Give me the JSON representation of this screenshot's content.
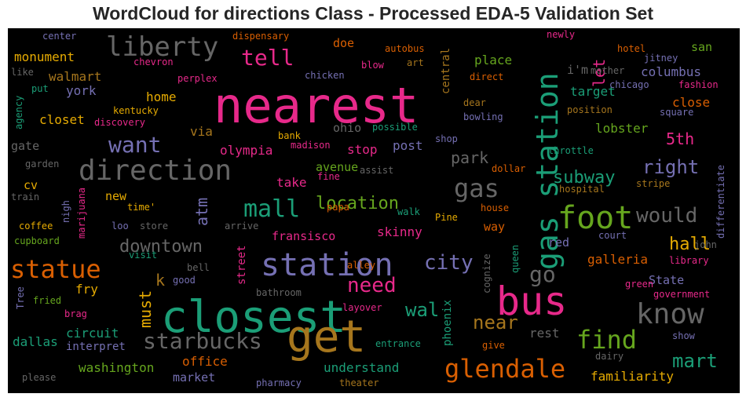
{
  "title": "WordCloud for directions Class - Processed EDA-5 Validation Set",
  "colors": {
    "green": "#1b9e77",
    "orange": "#d95f02",
    "purple": "#7570b3",
    "pink": "#e7298a",
    "lime": "#66a61e",
    "gold": "#e6ab02",
    "brown": "#a6761d",
    "gray": "#666666"
  },
  "chart_data": {
    "type": "wordcloud",
    "title": "WordCloud for directions Class - Processed EDA-5 Validation Set",
    "words": [
      {
        "text": "nearest",
        "size": 62,
        "color": "pink"
      },
      {
        "text": "closest",
        "size": 56,
        "color": "green"
      },
      {
        "text": "get",
        "size": 56,
        "color": "brown"
      },
      {
        "text": "bus",
        "size": 50,
        "color": "pink"
      },
      {
        "text": "station",
        "size": 40,
        "color": "purple"
      },
      {
        "text": "gas station",
        "size": 38,
        "color": "green"
      },
      {
        "text": "foot",
        "size": 40,
        "color": "lime"
      },
      {
        "text": "direction",
        "size": 36,
        "color": "gray"
      },
      {
        "text": "liberty",
        "size": 34,
        "color": "gray"
      },
      {
        "text": "glendale",
        "size": 32,
        "color": "orange"
      },
      {
        "text": "statue",
        "size": 32,
        "color": "orange"
      },
      {
        "text": "know",
        "size": 36,
        "color": "gray"
      },
      {
        "text": "find",
        "size": 32,
        "color": "lime"
      },
      {
        "text": "gas",
        "size": 32,
        "color": "gray"
      },
      {
        "text": "mall",
        "size": 30,
        "color": "green"
      },
      {
        "text": "starbucks",
        "size": 28,
        "color": "gray"
      },
      {
        "text": "want",
        "size": 28,
        "color": "purple"
      },
      {
        "text": "tell",
        "size": 28,
        "color": "pink"
      },
      {
        "text": "go",
        "size": 28,
        "color": "gray"
      },
      {
        "text": "need",
        "size": 26,
        "color": "pink"
      },
      {
        "text": "would",
        "size": 26,
        "color": "gray"
      },
      {
        "text": "city",
        "size": 26,
        "color": "purple"
      },
      {
        "text": "right",
        "size": 24,
        "color": "purple"
      },
      {
        "text": "mart",
        "size": 24,
        "color": "green"
      },
      {
        "text": "near",
        "size": 24,
        "color": "brown"
      },
      {
        "text": "wal",
        "size": 24,
        "color": "green"
      },
      {
        "text": "location",
        "size": 22,
        "color": "lime"
      },
      {
        "text": "downtown",
        "size": 22,
        "color": "gray"
      },
      {
        "text": "hall",
        "size": 22,
        "color": "gold"
      },
      {
        "text": "subway",
        "size": 22,
        "color": "green"
      },
      {
        "text": "park",
        "size": 20,
        "color": "gray"
      },
      {
        "text": "must",
        "size": 20,
        "color": "gold"
      },
      {
        "text": "5th",
        "size": 20,
        "color": "pink"
      },
      {
        "text": "atm",
        "size": 20,
        "color": "purple"
      },
      {
        "text": "let",
        "size": 20,
        "color": "pink"
      },
      {
        "text": "k",
        "size": 20,
        "color": "brown"
      },
      {
        "text": "skinny",
        "size": 16,
        "color": "pink"
      },
      {
        "text": "circuit",
        "size": 16,
        "color": "green"
      },
      {
        "text": "place",
        "size": 16,
        "color": "lime"
      },
      {
        "text": "columbus",
        "size": 16,
        "color": "purple"
      },
      {
        "text": "target",
        "size": 16,
        "color": "green"
      },
      {
        "text": "lobster",
        "size": 16,
        "color": "lime"
      },
      {
        "text": "galleria",
        "size": 16,
        "color": "orange"
      },
      {
        "text": "close",
        "size": 16,
        "color": "orange"
      },
      {
        "text": "olympia",
        "size": 16,
        "color": "pink"
      },
      {
        "text": "take",
        "size": 16,
        "color": "pink"
      },
      {
        "text": "stop",
        "size": 16,
        "color": "pink"
      },
      {
        "text": "post",
        "size": 16,
        "color": "purple"
      },
      {
        "text": "fry",
        "size": 16,
        "color": "gold"
      },
      {
        "text": "rest",
        "size": 16,
        "color": "gray"
      },
      {
        "text": "office",
        "size": 16,
        "color": "orange"
      },
      {
        "text": "understand",
        "size": 16,
        "color": "green"
      },
      {
        "text": "familiarity",
        "size": 16,
        "color": "gold"
      },
      {
        "text": "washington",
        "size": 16,
        "color": "lime"
      },
      {
        "text": "dallas",
        "size": 16,
        "color": "green"
      },
      {
        "text": "interpret",
        "size": 14,
        "color": "purple"
      },
      {
        "text": "market",
        "size": 15,
        "color": "purple"
      },
      {
        "text": "State",
        "size": 15,
        "color": "purple"
      },
      {
        "text": "fransisco",
        "size": 15,
        "color": "pink"
      },
      {
        "text": "avenue",
        "size": 15,
        "color": "lime"
      },
      {
        "text": "via",
        "size": 16,
        "color": "brown"
      },
      {
        "text": "home",
        "size": 16,
        "color": "gold"
      },
      {
        "text": "closet",
        "size": 16,
        "color": "gold"
      },
      {
        "text": "monument",
        "size": 16,
        "color": "gold"
      },
      {
        "text": "walmart",
        "size": 16,
        "color": "brown"
      },
      {
        "text": "york",
        "size": 16,
        "color": "purple"
      },
      {
        "text": "gate",
        "size": 15,
        "color": "gray"
      },
      {
        "text": "cv",
        "size": 15,
        "color": "gold"
      },
      {
        "text": "new",
        "size": 15,
        "color": "gold"
      },
      {
        "text": "way",
        "size": 15,
        "color": "orange"
      },
      {
        "text": "red",
        "size": 15,
        "color": "purple"
      },
      {
        "text": "ohio",
        "size": 15,
        "color": "gray"
      },
      {
        "text": "san",
        "size": 15,
        "color": "lime"
      },
      {
        "text": "doe",
        "size": 15,
        "color": "orange"
      },
      {
        "text": "i'm",
        "size": 15,
        "color": "gray"
      },
      {
        "text": "street",
        "size": 14,
        "color": "pink"
      },
      {
        "text": "central",
        "size": 14,
        "color": "brown"
      },
      {
        "text": "phoenix",
        "size": 14,
        "color": "green"
      },
      {
        "text": "center",
        "size": 12,
        "color": "purple"
      },
      {
        "text": "dispensary",
        "size": 12,
        "color": "orange"
      },
      {
        "text": "autobus",
        "size": 12,
        "color": "orange"
      },
      {
        "text": "newly",
        "size": 12,
        "color": "pink"
      },
      {
        "text": "jitney",
        "size": 12,
        "color": "purple"
      },
      {
        "text": "chevron",
        "size": 12,
        "color": "pink"
      },
      {
        "text": "blow",
        "size": 12,
        "color": "pink"
      },
      {
        "text": "art",
        "size": 12,
        "color": "brown"
      },
      {
        "text": "hotel",
        "size": 12,
        "color": "orange"
      },
      {
        "text": "like",
        "size": 12,
        "color": "gray"
      },
      {
        "text": "perplex",
        "size": 12,
        "color": "pink"
      },
      {
        "text": "chicken",
        "size": 12,
        "color": "purple"
      },
      {
        "text": "direct",
        "size": 12,
        "color": "orange"
      },
      {
        "text": "mother",
        "size": 12,
        "color": "gray"
      },
      {
        "text": "fashion",
        "size": 12,
        "color": "pink"
      },
      {
        "text": "put",
        "size": 12,
        "color": "green"
      },
      {
        "text": "chicago",
        "size": 12,
        "color": "purple"
      },
      {
        "text": "agency",
        "size": 12,
        "color": "green"
      },
      {
        "text": "kentucky",
        "size": 12,
        "color": "gold"
      },
      {
        "text": "dear",
        "size": 12,
        "color": "brown"
      },
      {
        "text": "position",
        "size": 12,
        "color": "brown"
      },
      {
        "text": "discovery",
        "size": 12,
        "color": "pink"
      },
      {
        "text": "bowling",
        "size": 12,
        "color": "purple"
      },
      {
        "text": "square",
        "size": 12,
        "color": "purple"
      },
      {
        "text": "possible",
        "size": 12,
        "color": "green"
      },
      {
        "text": "bank",
        "size": 12,
        "color": "gold"
      },
      {
        "text": "shop",
        "size": 12,
        "color": "purple"
      },
      {
        "text": "madison",
        "size": 12,
        "color": "pink"
      },
      {
        "text": "throttle",
        "size": 12,
        "color": "green"
      },
      {
        "text": "garden",
        "size": 12,
        "color": "gray"
      },
      {
        "text": "assist",
        "size": 12,
        "color": "gray"
      },
      {
        "text": "dollar",
        "size": 12,
        "color": "orange"
      },
      {
        "text": "fine",
        "size": 12,
        "color": "pink"
      },
      {
        "text": "hospital",
        "size": 12,
        "color": "brown"
      },
      {
        "text": "stripe",
        "size": 12,
        "color": "brown"
      },
      {
        "text": "train",
        "size": 12,
        "color": "gray"
      },
      {
        "text": "nigh",
        "size": 12,
        "color": "purple"
      },
      {
        "text": "time'",
        "size": 12,
        "color": "gold"
      },
      {
        "text": "marijuana",
        "size": 12,
        "color": "pink"
      },
      {
        "text": "papa",
        "size": 12,
        "color": "orange"
      },
      {
        "text": "house",
        "size": 12,
        "color": "orange"
      },
      {
        "text": "differentiate",
        "size": 12,
        "color": "purple"
      },
      {
        "text": "coffee",
        "size": 12,
        "color": "gold"
      },
      {
        "text": "loo",
        "size": 12,
        "color": "purple"
      },
      {
        "text": "store",
        "size": 12,
        "color": "gray"
      },
      {
        "text": "walk",
        "size": 12,
        "color": "green"
      },
      {
        "text": "Pine",
        "size": 12,
        "color": "gold"
      },
      {
        "text": "cupboard",
        "size": 12,
        "color": "lime"
      },
      {
        "text": "arrive",
        "size": 12,
        "color": "gray"
      },
      {
        "text": "court",
        "size": 12,
        "color": "purple"
      },
      {
        "text": "john",
        "size": 12,
        "color": "gray"
      },
      {
        "text": "alley",
        "size": 12,
        "color": "orange"
      },
      {
        "text": "visit",
        "size": 12,
        "color": "green"
      },
      {
        "text": "library",
        "size": 12,
        "color": "pink"
      },
      {
        "text": "cognize",
        "size": 12,
        "color": "gray"
      },
      {
        "text": "queen",
        "size": 12,
        "color": "green"
      },
      {
        "text": "bell",
        "size": 12,
        "color": "gray"
      },
      {
        "text": "good",
        "size": 12,
        "color": "purple"
      },
      {
        "text": "green",
        "size": 12,
        "color": "pink"
      },
      {
        "text": "government",
        "size": 12,
        "color": "pink"
      },
      {
        "text": "Tree",
        "size": 12,
        "color": "purple"
      },
      {
        "text": "bathroom",
        "size": 12,
        "color": "gray"
      },
      {
        "text": "fried",
        "size": 12,
        "color": "lime"
      },
      {
        "text": "brag",
        "size": 12,
        "color": "pink"
      },
      {
        "text": "layover",
        "size": 12,
        "color": "pink"
      },
      {
        "text": "entrance",
        "size": 12,
        "color": "green"
      },
      {
        "text": "give",
        "size": 12,
        "color": "orange"
      },
      {
        "text": "show",
        "size": 12,
        "color": "purple"
      },
      {
        "text": "dairy",
        "size": 12,
        "color": "gray"
      },
      {
        "text": "please",
        "size": 12,
        "color": "gray"
      },
      {
        "text": "pharmacy",
        "size": 12,
        "color": "purple"
      },
      {
        "text": "theater",
        "size": 12,
        "color": "brown"
      }
    ]
  }
}
